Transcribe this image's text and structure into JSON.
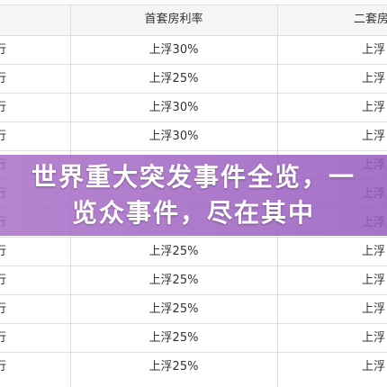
{
  "table": {
    "header": [
      "首套房利率",
      "二套房"
    ],
    "rows": [
      {
        "bank": "行",
        "first": "上浮30%",
        "second": "上浮"
      },
      {
        "bank": "行",
        "first": "上浮25%",
        "second": "上浮"
      },
      {
        "bank": "行",
        "first": "上浮30%",
        "second": "上浮"
      },
      {
        "bank": "行",
        "first": "上浮30%",
        "second": "上浮"
      },
      {
        "bank": "行",
        "second": "上浮"
      },
      {
        "bank": "行",
        "second": "上浮"
      },
      {
        "bank": "行",
        "second": "上浮"
      },
      {
        "bank": "行",
        "first": "上浮25%",
        "second": "上浮"
      },
      {
        "bank": "行",
        "first": "上浮25%",
        "second": "上浮"
      },
      {
        "bank": "行",
        "first": "上浮25%",
        "second": "上浮"
      },
      {
        "bank": "行",
        "first": "上浮25%",
        "second": "上浮"
      },
      {
        "bank": "行",
        "first": "上浮25%",
        "second": "上浮"
      }
    ]
  },
  "banner": {
    "title": "世界重大突发事件全览，一览众事件，尽在其中"
  }
}
